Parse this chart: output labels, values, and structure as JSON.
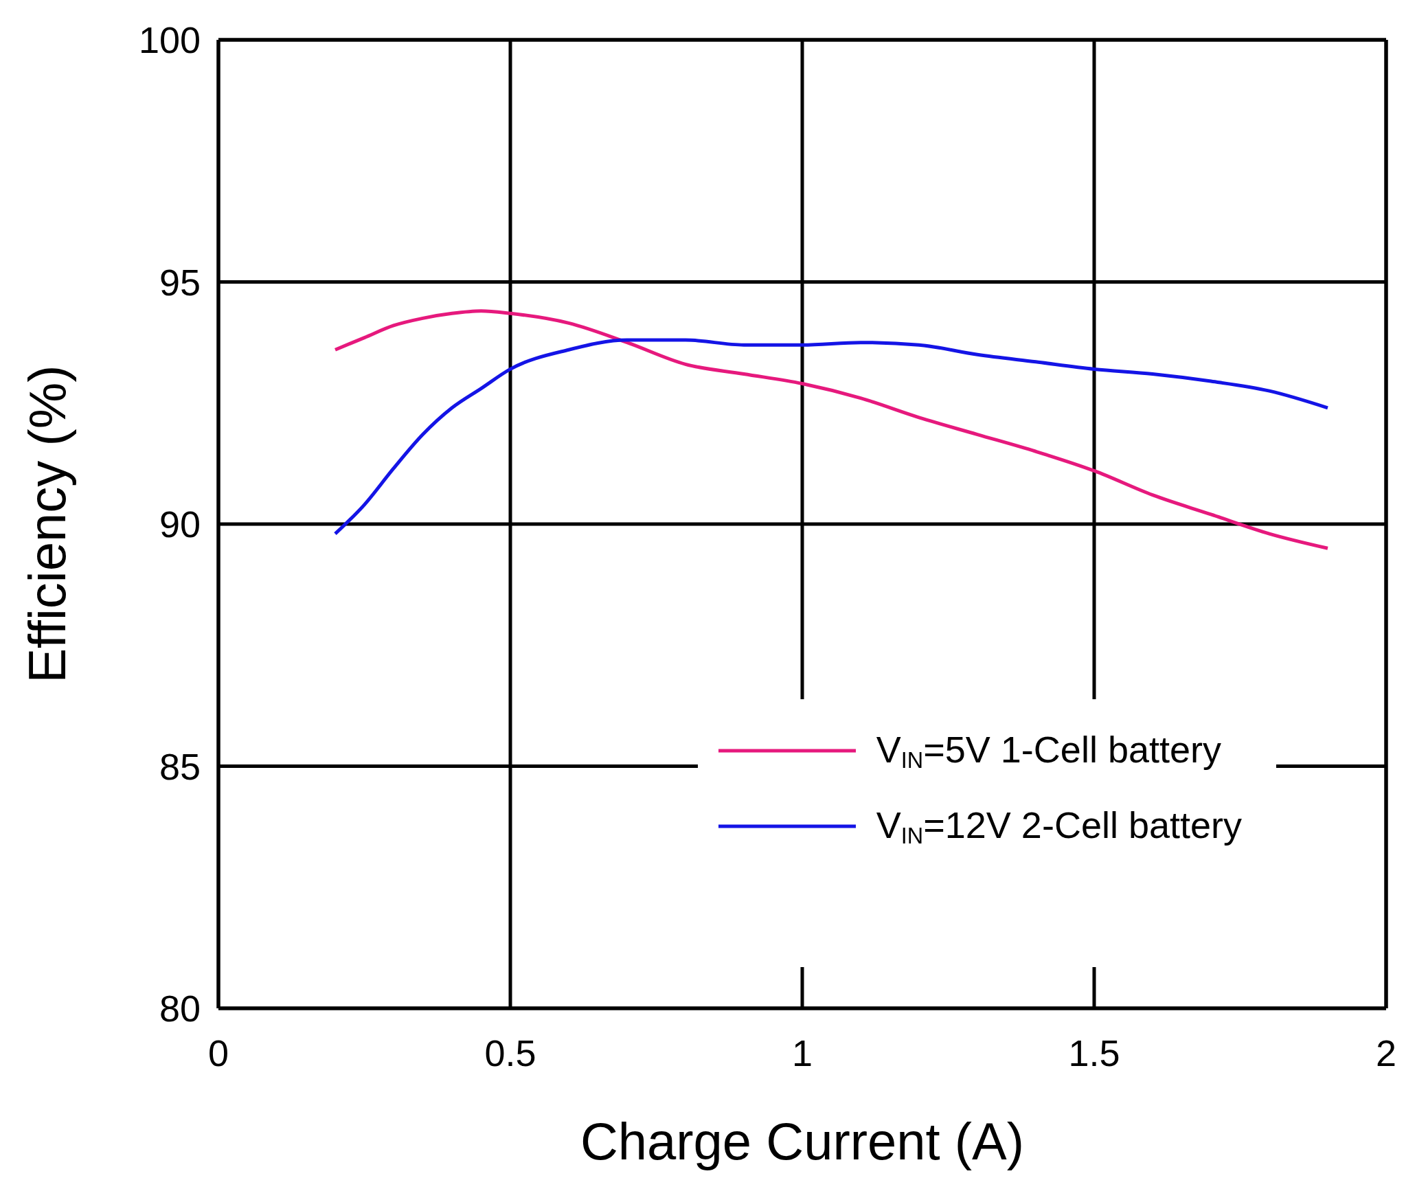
{
  "chart_data": {
    "type": "line",
    "xlabel": "Charge Current  (A)",
    "ylabel": "Efficiency (%)",
    "xlim": [
      0,
      2
    ],
    "xticks": [
      0,
      0.5,
      1,
      1.5,
      2
    ],
    "ylim": [
      80,
      100
    ],
    "yticks": [
      80,
      85,
      90,
      95,
      100
    ],
    "grid": true,
    "legend": "bottom right",
    "marker": "none",
    "line_style": "solid",
    "x": [
      0.2,
      0.25,
      0.3,
      0.35,
      0.4,
      0.45,
      0.5,
      0.6,
      0.7,
      0.8,
      0.9,
      1.0,
      1.1,
      1.2,
      1.3,
      1.4,
      1.5,
      1.6,
      1.7,
      1.8,
      1.9
    ],
    "series": [
      {
        "name": "V$_{IN}$=5V 1-Cell battery",
        "color": "#e6197d",
        "values": [
          93.6,
          93.85,
          94.1,
          94.25,
          94.35,
          94.4,
          94.35,
          94.15,
          93.75,
          93.3,
          93.1,
          92.9,
          92.6,
          92.2,
          91.85,
          91.5,
          91.1,
          90.6,
          90.2,
          89.8,
          89.5
        ]
      },
      {
        "name": "V$_{IN}$=12V 2-Cell battery",
        "color": "#1414e6",
        "values": [
          89.8,
          90.4,
          91.15,
          91.85,
          92.4,
          92.8,
          93.2,
          93.6,
          93.8,
          93.8,
          93.7,
          93.7,
          93.75,
          93.7,
          93.5,
          93.35,
          93.2,
          93.1,
          92.95,
          92.75,
          92.4
        ]
      }
    ]
  }
}
